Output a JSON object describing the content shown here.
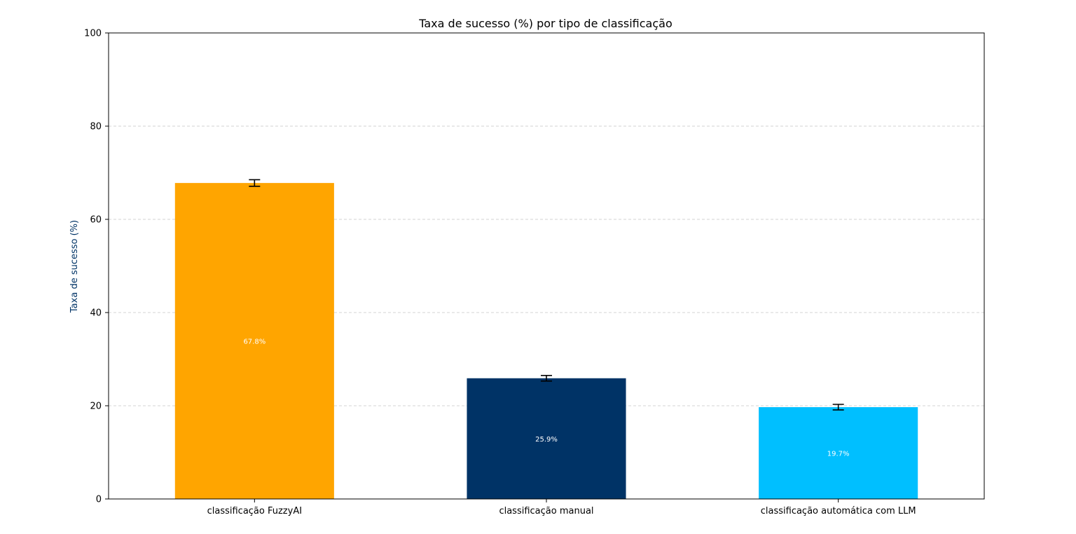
{
  "chart_data": {
    "type": "bar",
    "title": "Taxa de sucesso (%) por tipo de classificação",
    "xlabel": "",
    "ylabel": "Taxa de sucesso (%)",
    "ylim": [
      0,
      100
    ],
    "yticks": [
      "0",
      "20",
      "40",
      "60",
      "80",
      "100"
    ],
    "categories": [
      "classificação FuzzyAI",
      "classificação manual",
      "classificação automática com LLM"
    ],
    "values": [
      67.8,
      25.9,
      19.7
    ],
    "errors": [
      0.7,
      0.6,
      0.6
    ],
    "data_labels": [
      "67.8%",
      "25.9%",
      "19.7%"
    ],
    "colors": [
      "#ffa500",
      "#003366",
      "#00bfff"
    ],
    "ylabel_color": "#003366",
    "grid": "horizontal-dashed"
  }
}
